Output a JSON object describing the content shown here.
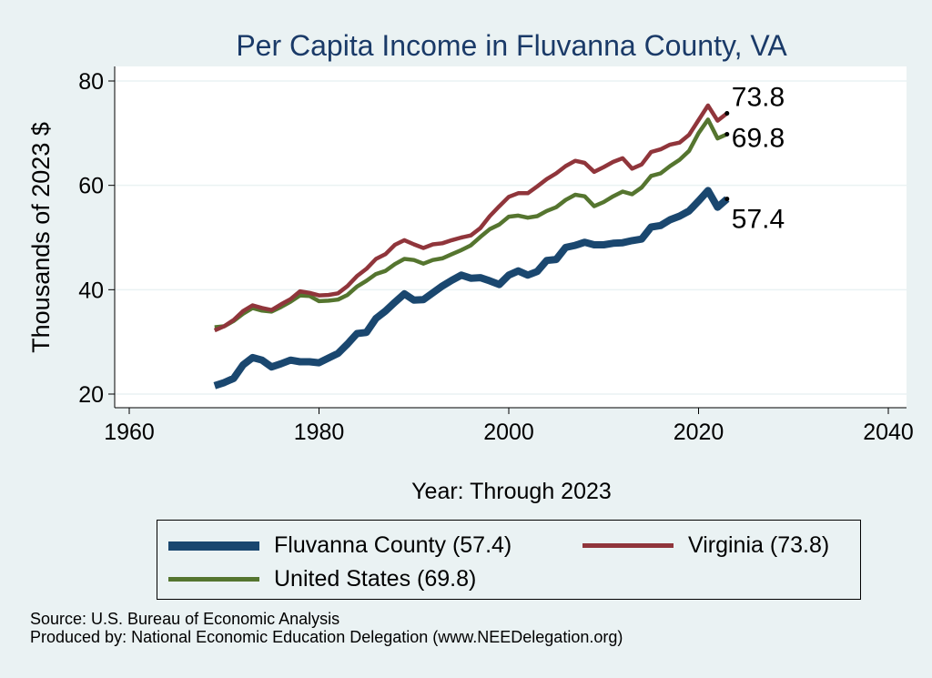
{
  "chart_data": {
    "type": "line",
    "title": "Per Capita Income in Fluvanna County, VA",
    "xlabel": "Year: Through 2023",
    "ylabel": "Thousands of 2023 $",
    "xlim": [
      1960,
      2040
    ],
    "ylim": [
      20,
      80
    ],
    "x_ticks": [
      1960,
      1980,
      2000,
      2020,
      2040
    ],
    "y_ticks": [
      20,
      40,
      60,
      80
    ],
    "grid": "horizontal",
    "legend_position": "bottom",
    "x": [
      1969,
      1970,
      1971,
      1972,
      1973,
      1974,
      1975,
      1976,
      1977,
      1978,
      1979,
      1980,
      1981,
      1982,
      1983,
      1984,
      1985,
      1986,
      1987,
      1988,
      1989,
      1990,
      1991,
      1992,
      1993,
      1994,
      1995,
      1996,
      1997,
      1998,
      1999,
      2000,
      2001,
      2002,
      2003,
      2004,
      2005,
      2006,
      2007,
      2008,
      2009,
      2010,
      2011,
      2012,
      2013,
      2014,
      2015,
      2016,
      2017,
      2018,
      2019,
      2020,
      2021,
      2022,
      2023
    ],
    "series": [
      {
        "name": "Fluvanna County (57.4)",
        "color": "#1a476f",
        "end_label": "57.4",
        "values": [
          21.6,
          22.2,
          23.0,
          25.6,
          27.0,
          26.5,
          25.2,
          25.8,
          26.5,
          26.2,
          26.2,
          26.0,
          26.9,
          27.8,
          29.6,
          31.6,
          31.8,
          34.5,
          35.9,
          37.6,
          39.2,
          38.0,
          38.1,
          39.4,
          40.7,
          41.8,
          42.8,
          42.2,
          42.3,
          41.7,
          41.0,
          42.8,
          43.6,
          42.8,
          43.5,
          45.6,
          45.8,
          48.1,
          48.5,
          49.1,
          48.6,
          48.6,
          48.9,
          49.0,
          49.4,
          49.7,
          52.0,
          52.3,
          53.4,
          54.1,
          55.1,
          57.0,
          59.0,
          55.8,
          57.4
        ]
      },
      {
        "name": "Virginia (73.8)",
        "color": "#90353b",
        "end_label": "73.8",
        "values": [
          32.2,
          33.0,
          34.2,
          35.9,
          37.0,
          36.5,
          36.1,
          37.2,
          38.2,
          39.7,
          39.4,
          38.9,
          39.0,
          39.3,
          40.7,
          42.6,
          44.0,
          45.9,
          46.8,
          48.6,
          49.5,
          48.7,
          48.0,
          48.7,
          48.9,
          49.5,
          50.0,
          50.4,
          51.8,
          54.1,
          56.0,
          57.8,
          58.5,
          58.5,
          59.8,
          61.2,
          62.3,
          63.7,
          64.7,
          64.3,
          62.6,
          63.5,
          64.5,
          65.2,
          63.2,
          64.0,
          66.4,
          66.9,
          67.8,
          68.2,
          69.7,
          72.5,
          75.3,
          72.4,
          73.8
        ]
      },
      {
        "name": "United States (69.8)",
        "color": "#55752f",
        "end_label": "69.8",
        "values": [
          32.8,
          33.0,
          34.0,
          35.4,
          36.5,
          36.0,
          35.8,
          36.7,
          37.7,
          38.9,
          38.8,
          37.8,
          37.9,
          38.1,
          39.0,
          40.6,
          41.7,
          43.0,
          43.6,
          44.9,
          45.9,
          45.7,
          45.0,
          45.7,
          46.0,
          46.8,
          47.6,
          48.5,
          50.1,
          51.6,
          52.5,
          54.0,
          54.2,
          53.8,
          54.1,
          55.1,
          55.8,
          57.2,
          58.2,
          57.9,
          56.0,
          56.8,
          57.9,
          58.8,
          58.3,
          59.6,
          61.8,
          62.3,
          63.7,
          64.9,
          66.6,
          70.0,
          72.6,
          69.0,
          69.8
        ]
      }
    ]
  },
  "legend": {
    "items": [
      {
        "label": "Fluvanna County (57.4)"
      },
      {
        "label": "Virginia (73.8)"
      },
      {
        "label": "United States (69.8)"
      }
    ]
  },
  "footer": {
    "source": "Source: U.S. Bureau of Economic Analysis",
    "produced": "Produced by: National Economic Education Delegation (www.NEEDelegation.org)"
  }
}
